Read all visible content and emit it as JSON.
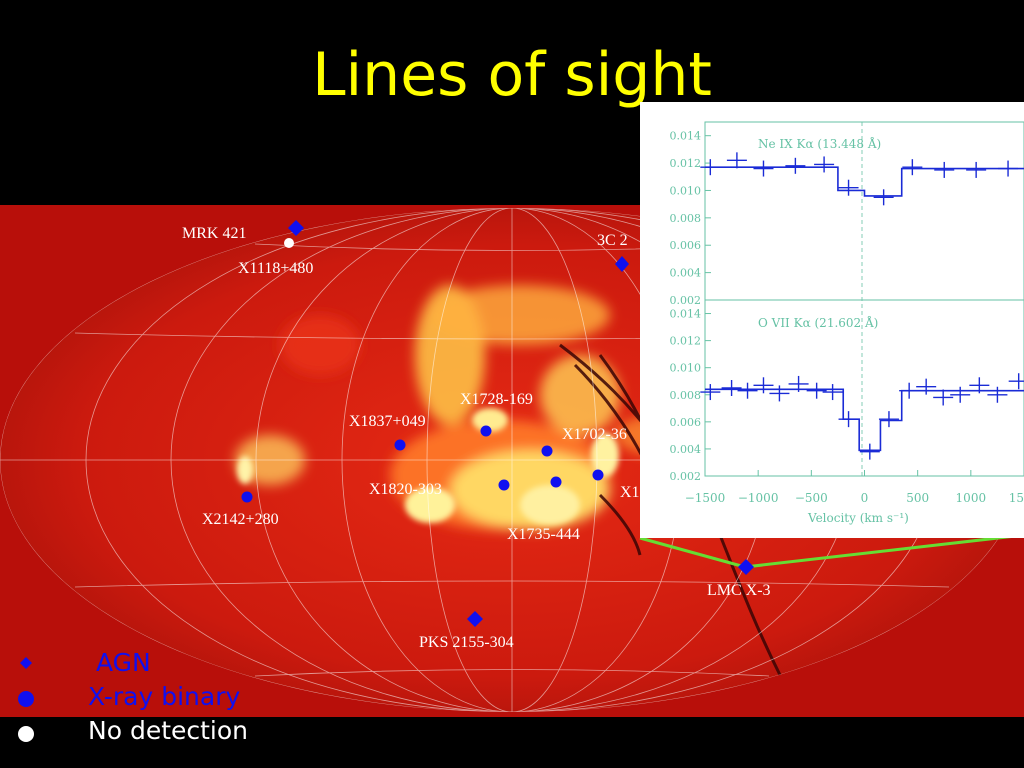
{
  "slide": {
    "title": "Lines of sight"
  },
  "colors": {
    "title": "#ffff00",
    "agn": "#1010f0",
    "xray_binary": "#1010f0",
    "no_detection": "#ffffff",
    "connector": "#66dd33",
    "spectrum": "#1a2bd6",
    "frame": "#66c2a5"
  },
  "sources": [
    {
      "id": "mrk421",
      "label": "MRK 421",
      "type": "agn"
    },
    {
      "id": "x1118",
      "label": "X1118+480",
      "type": "no_detection"
    },
    {
      "id": "3c273",
      "label": "3C 2",
      "type": "agn"
    },
    {
      "id": "x1728",
      "label": "X1728-169",
      "type": "xray_binary"
    },
    {
      "id": "x1837",
      "label": "X1837+049",
      "type": "xray_binary"
    },
    {
      "id": "x1702",
      "label": "X1702-36",
      "type": "xray_binary"
    },
    {
      "id": "x1820",
      "label": "X1820-303",
      "type": "xray_binary"
    },
    {
      "id": "x1735",
      "label": "X1735-444",
      "type": "xray_binary"
    },
    {
      "id": "x1x",
      "label": "X1",
      "type": "xray_binary"
    },
    {
      "id": "x2142",
      "label": "X2142+280",
      "type": "xray_binary"
    },
    {
      "id": "lmcx3",
      "label": "LMC X-3",
      "type": "agn"
    },
    {
      "id": "pks2155",
      "label": "PKS 2155-304",
      "type": "agn"
    }
  ],
  "legend": [
    {
      "id": "agn",
      "label": " AGN",
      "symbol": "diamond",
      "color": "#1010f0"
    },
    {
      "id": "xray-binary",
      "label": "X-ray binary",
      "symbol": "circle",
      "color": "#1010f0"
    },
    {
      "id": "no-detection",
      "label": "No detection",
      "symbol": "circle",
      "color": "#ffffff"
    }
  ],
  "chart_data": [
    {
      "type": "line",
      "title": "Ne IX Kα (13.448 Å)",
      "xlabel": "Velocity (km s⁻¹)",
      "ylabel": "",
      "xlim": [
        -1500,
        1500
      ],
      "ylim": [
        0.002,
        0.015
      ],
      "x_ticks": [
        "−1500",
        "−1000",
        "−500",
        "0",
        "500",
        "1000",
        "1500"
      ],
      "y_ticks": [
        "0.002",
        "0.004",
        "0.006",
        "0.008",
        "0.010",
        "0.012",
        "0.014"
      ],
      "model": {
        "x": [
          -1500,
          -250,
          -250,
          0,
          0,
          350,
          350,
          1500
        ],
        "y": [
          0.0117,
          0.0117,
          0.01,
          0.01,
          0.0096,
          0.0096,
          0.0116,
          0.0116
        ]
      },
      "points": [
        {
          "x": -1450,
          "y": 0.0117
        },
        {
          "x": -1200,
          "y": 0.0122
        },
        {
          "x": -950,
          "y": 0.0116
        },
        {
          "x": -650,
          "y": 0.0118
        },
        {
          "x": -380,
          "y": 0.0119
        },
        {
          "x": -150,
          "y": 0.0102
        },
        {
          "x": 180,
          "y": 0.0095
        },
        {
          "x": 450,
          "y": 0.0117
        },
        {
          "x": 750,
          "y": 0.0115
        },
        {
          "x": 1050,
          "y": 0.0115
        },
        {
          "x": 1350,
          "y": 0.0116
        }
      ]
    },
    {
      "type": "line",
      "title": "O VII Kα (21.602 Å)",
      "xlabel": "Velocity (km s⁻¹)",
      "ylabel": "",
      "xlim": [
        -1500,
        1500
      ],
      "ylim": [
        0.002,
        0.015
      ],
      "x_ticks": [
        "−1500",
        "−1000",
        "−500",
        "0",
        "500",
        "1000",
        "1500"
      ],
      "y_ticks": [
        "0.002",
        "0.004",
        "0.006",
        "0.008",
        "0.010",
        "0.012",
        "0.014"
      ],
      "model": {
        "x": [
          -1500,
          -200,
          -200,
          -50,
          -50,
          150,
          150,
          350,
          350,
          1500
        ],
        "y": [
          0.0084,
          0.0084,
          0.0062,
          0.0062,
          0.0039,
          0.0039,
          0.0061,
          0.0061,
          0.0083,
          0.0083
        ]
      },
      "points": [
        {
          "x": -1450,
          "y": 0.0082
        },
        {
          "x": -1250,
          "y": 0.0085
        },
        {
          "x": -1100,
          "y": 0.0083
        },
        {
          "x": -950,
          "y": 0.0087
        },
        {
          "x": -800,
          "y": 0.0081
        },
        {
          "x": -620,
          "y": 0.0088
        },
        {
          "x": -450,
          "y": 0.0083
        },
        {
          "x": -300,
          "y": 0.0082
        },
        {
          "x": -150,
          "y": 0.0062
        },
        {
          "x": 50,
          "y": 0.0038
        },
        {
          "x": 230,
          "y": 0.0062
        },
        {
          "x": 420,
          "y": 0.0083
        },
        {
          "x": 580,
          "y": 0.0086
        },
        {
          "x": 740,
          "y": 0.0078
        },
        {
          "x": 900,
          "y": 0.008
        },
        {
          "x": 1080,
          "y": 0.0087
        },
        {
          "x": 1250,
          "y": 0.008
        },
        {
          "x": 1450,
          "y": 0.009
        }
      ]
    }
  ]
}
